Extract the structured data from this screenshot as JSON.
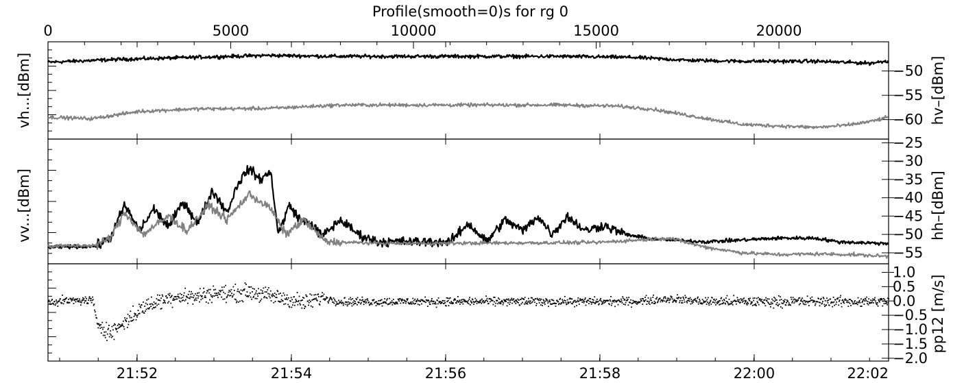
{
  "chart_data": [
    {
      "type": "line",
      "panel": "top",
      "title": "Profile(smooth=0)s for rg 0",
      "top_axis": {
        "range": [
          0,
          23000
        ],
        "ticks": [
          0,
          5000,
          10000,
          15000,
          20000
        ],
        "tick_labels": [
          "0",
          "5000",
          "10000",
          "15000",
          "20000"
        ]
      },
      "ylabel_left": "vh...[dBm]",
      "ylabel_right": "hv–[dBm]",
      "ylim": [
        -64,
        -44
      ],
      "right_ticks": [
        -50,
        -55,
        -60
      ],
      "right_tick_labels": [
        "−50",
        "−55",
        "−60"
      ],
      "series": [
        {
          "color": "#000000",
          "points": [
            [
              0,
              -48.2
            ],
            [
              2000,
              -47.6
            ],
            [
              4000,
              -47.2
            ],
            [
              6000,
              -46.8
            ],
            [
              8000,
              -47.0
            ],
            [
              10000,
              -47.0
            ],
            [
              12000,
              -47.0
            ],
            [
              14000,
              -47.0
            ],
            [
              16000,
              -47.2
            ],
            [
              17500,
              -47.8
            ],
            [
              19000,
              -48.0
            ],
            [
              21000,
              -48.0
            ],
            [
              22500,
              -48.4
            ],
            [
              23000,
              -47.9
            ]
          ]
        },
        {
          "color": "#808080",
          "points": [
            [
              0,
              -59.5
            ],
            [
              1200,
              -59.8
            ],
            [
              2500,
              -58.3
            ],
            [
              4000,
              -57.8
            ],
            [
              6000,
              -57.7
            ],
            [
              8000,
              -57.0
            ],
            [
              10000,
              -57.0
            ],
            [
              12000,
              -57.0
            ],
            [
              14000,
              -57.0
            ],
            [
              15500,
              -57.2
            ],
            [
              16500,
              -57.8
            ],
            [
              17800,
              -59.5
            ],
            [
              19000,
              -61.0
            ],
            [
              20000,
              -61.3
            ],
            [
              21000,
              -61.6
            ],
            [
              21800,
              -61.2
            ],
            [
              22500,
              -60.4
            ],
            [
              23000,
              -59.5
            ]
          ]
        }
      ]
    },
    {
      "type": "line",
      "panel": "middle",
      "ylabel_left": "vv...[dBm]",
      "ylabel_right": "hh–[dBm]",
      "ylim": [
        -58,
        -24
      ],
      "right_ticks": [
        -25,
        -30,
        -35,
        -40,
        -45,
        -50,
        -55
      ],
      "right_tick_labels": [
        "−25",
        "−30",
        "−35",
        "−40",
        "−45",
        "−50",
        "−55"
      ],
      "series": [
        {
          "color": "#000000",
          "points": [
            [
              0,
              -53.5
            ],
            [
              1300,
              -53.2
            ],
            [
              1700,
              -51.0
            ],
            [
              2100,
              -42.0
            ],
            [
              2500,
              -49.0
            ],
            [
              2900,
              -43.0
            ],
            [
              3300,
              -48.0
            ],
            [
              3700,
              -41.0
            ],
            [
              4100,
              -47.0
            ],
            [
              4500,
              -38.0
            ],
            [
              4900,
              -44.0
            ],
            [
              5200,
              -36.0
            ],
            [
              5500,
              -32.0
            ],
            [
              5800,
              -35.0
            ],
            [
              6100,
              -33.0
            ],
            [
              6300,
              -50.0
            ],
            [
              6600,
              -42.0
            ],
            [
              6900,
              -46.0
            ],
            [
              7200,
              -47.0
            ],
            [
              7500,
              -50.5
            ],
            [
              8000,
              -46.0
            ],
            [
              8500,
              -50.0
            ],
            [
              9000,
              -52.0
            ],
            [
              10000,
              -52.0
            ],
            [
              11000,
              -52.0
            ],
            [
              11500,
              -47.0
            ],
            [
              12000,
              -52.0
            ],
            [
              12500,
              -46.0
            ],
            [
              13000,
              -49.0
            ],
            [
              13400,
              -45.0
            ],
            [
              13800,
              -50.0
            ],
            [
              14200,
              -45.0
            ],
            [
              14700,
              -49.0
            ],
            [
              15200,
              -47.5
            ],
            [
              15800,
              -50.0
            ],
            [
              16500,
              -51.2
            ],
            [
              17000,
              -51.5
            ],
            [
              18000,
              -52.0
            ],
            [
              19000,
              -51.5
            ],
            [
              20000,
              -51.0
            ],
            [
              21000,
              -51.0
            ],
            [
              21600,
              -52.0
            ],
            [
              23000,
              -52.5
            ]
          ]
        },
        {
          "color": "#808080",
          "points": [
            [
              0,
              -53.2
            ],
            [
              1300,
              -53.0
            ],
            [
              1700,
              -51.0
            ],
            [
              2100,
              -44.0
            ],
            [
              2600,
              -50.0
            ],
            [
              3300,
              -45.0
            ],
            [
              3800,
              -49.0
            ],
            [
              4400,
              -42.0
            ],
            [
              4900,
              -46.0
            ],
            [
              5500,
              -39.0
            ],
            [
              6100,
              -43.0
            ],
            [
              6500,
              -50.0
            ],
            [
              7000,
              -46.0
            ],
            [
              7600,
              -52.0
            ],
            [
              9000,
              -52.4
            ],
            [
              11000,
              -52.4
            ],
            [
              13000,
              -52.3
            ],
            [
              15000,
              -52.2
            ],
            [
              16200,
              -51.5
            ],
            [
              17000,
              -51.0
            ],
            [
              18000,
              -53.5
            ],
            [
              19000,
              -55.0
            ],
            [
              20000,
              -55.5
            ],
            [
              21000,
              -55.3
            ],
            [
              22000,
              -55.5
            ],
            [
              23000,
              -56.0
            ]
          ]
        }
      ]
    },
    {
      "type": "scatter",
      "panel": "bottom",
      "ylabel_right": "pp12 [m/s]",
      "ylim": [
        -2.1,
        1.3
      ],
      "right_ticks": [
        1.0,
        0.5,
        0.0,
        -0.5,
        -1.0,
        -1.5,
        -2.0
      ],
      "right_tick_labels": [
        "1.0",
        "0.5",
        "0.0",
        "−0.5",
        "−1.0",
        "−1.5",
        "−2.0"
      ],
      "x_time_ticks": [
        "21:52",
        "21:54",
        "21:56",
        "21:58",
        "22:00",
        "22:02"
      ],
      "series": [
        {
          "color": "#000000",
          "points": [
            [
              0,
              0.0
            ],
            [
              1200,
              0.05
            ],
            [
              1300,
              -0.7
            ],
            [
              1700,
              -1.1
            ],
            [
              2000,
              -0.8
            ],
            [
              2300,
              -0.5
            ],
            [
              2600,
              -0.2
            ],
            [
              3000,
              0.0
            ],
            [
              3500,
              0.2
            ],
            [
              4000,
              0.15
            ],
            [
              4500,
              0.3
            ],
            [
              5000,
              0.25
            ],
            [
              5500,
              0.35
            ],
            [
              6000,
              0.2
            ],
            [
              6500,
              0.1
            ],
            [
              7000,
              -0.05
            ],
            [
              7500,
              0.15
            ],
            [
              8000,
              0.0
            ],
            [
              9000,
              0.0
            ],
            [
              10000,
              0.0
            ],
            [
              11000,
              0.0
            ],
            [
              12000,
              0.0
            ],
            [
              13000,
              0.0
            ],
            [
              14000,
              0.0
            ],
            [
              15000,
              0.0
            ],
            [
              16000,
              0.0
            ],
            [
              17000,
              0.1
            ],
            [
              18000,
              0.0
            ],
            [
              19000,
              0.0
            ],
            [
              20000,
              0.0
            ],
            [
              21000,
              0.0
            ],
            [
              22000,
              0.0
            ],
            [
              23000,
              0.0
            ]
          ]
        }
      ]
    }
  ]
}
